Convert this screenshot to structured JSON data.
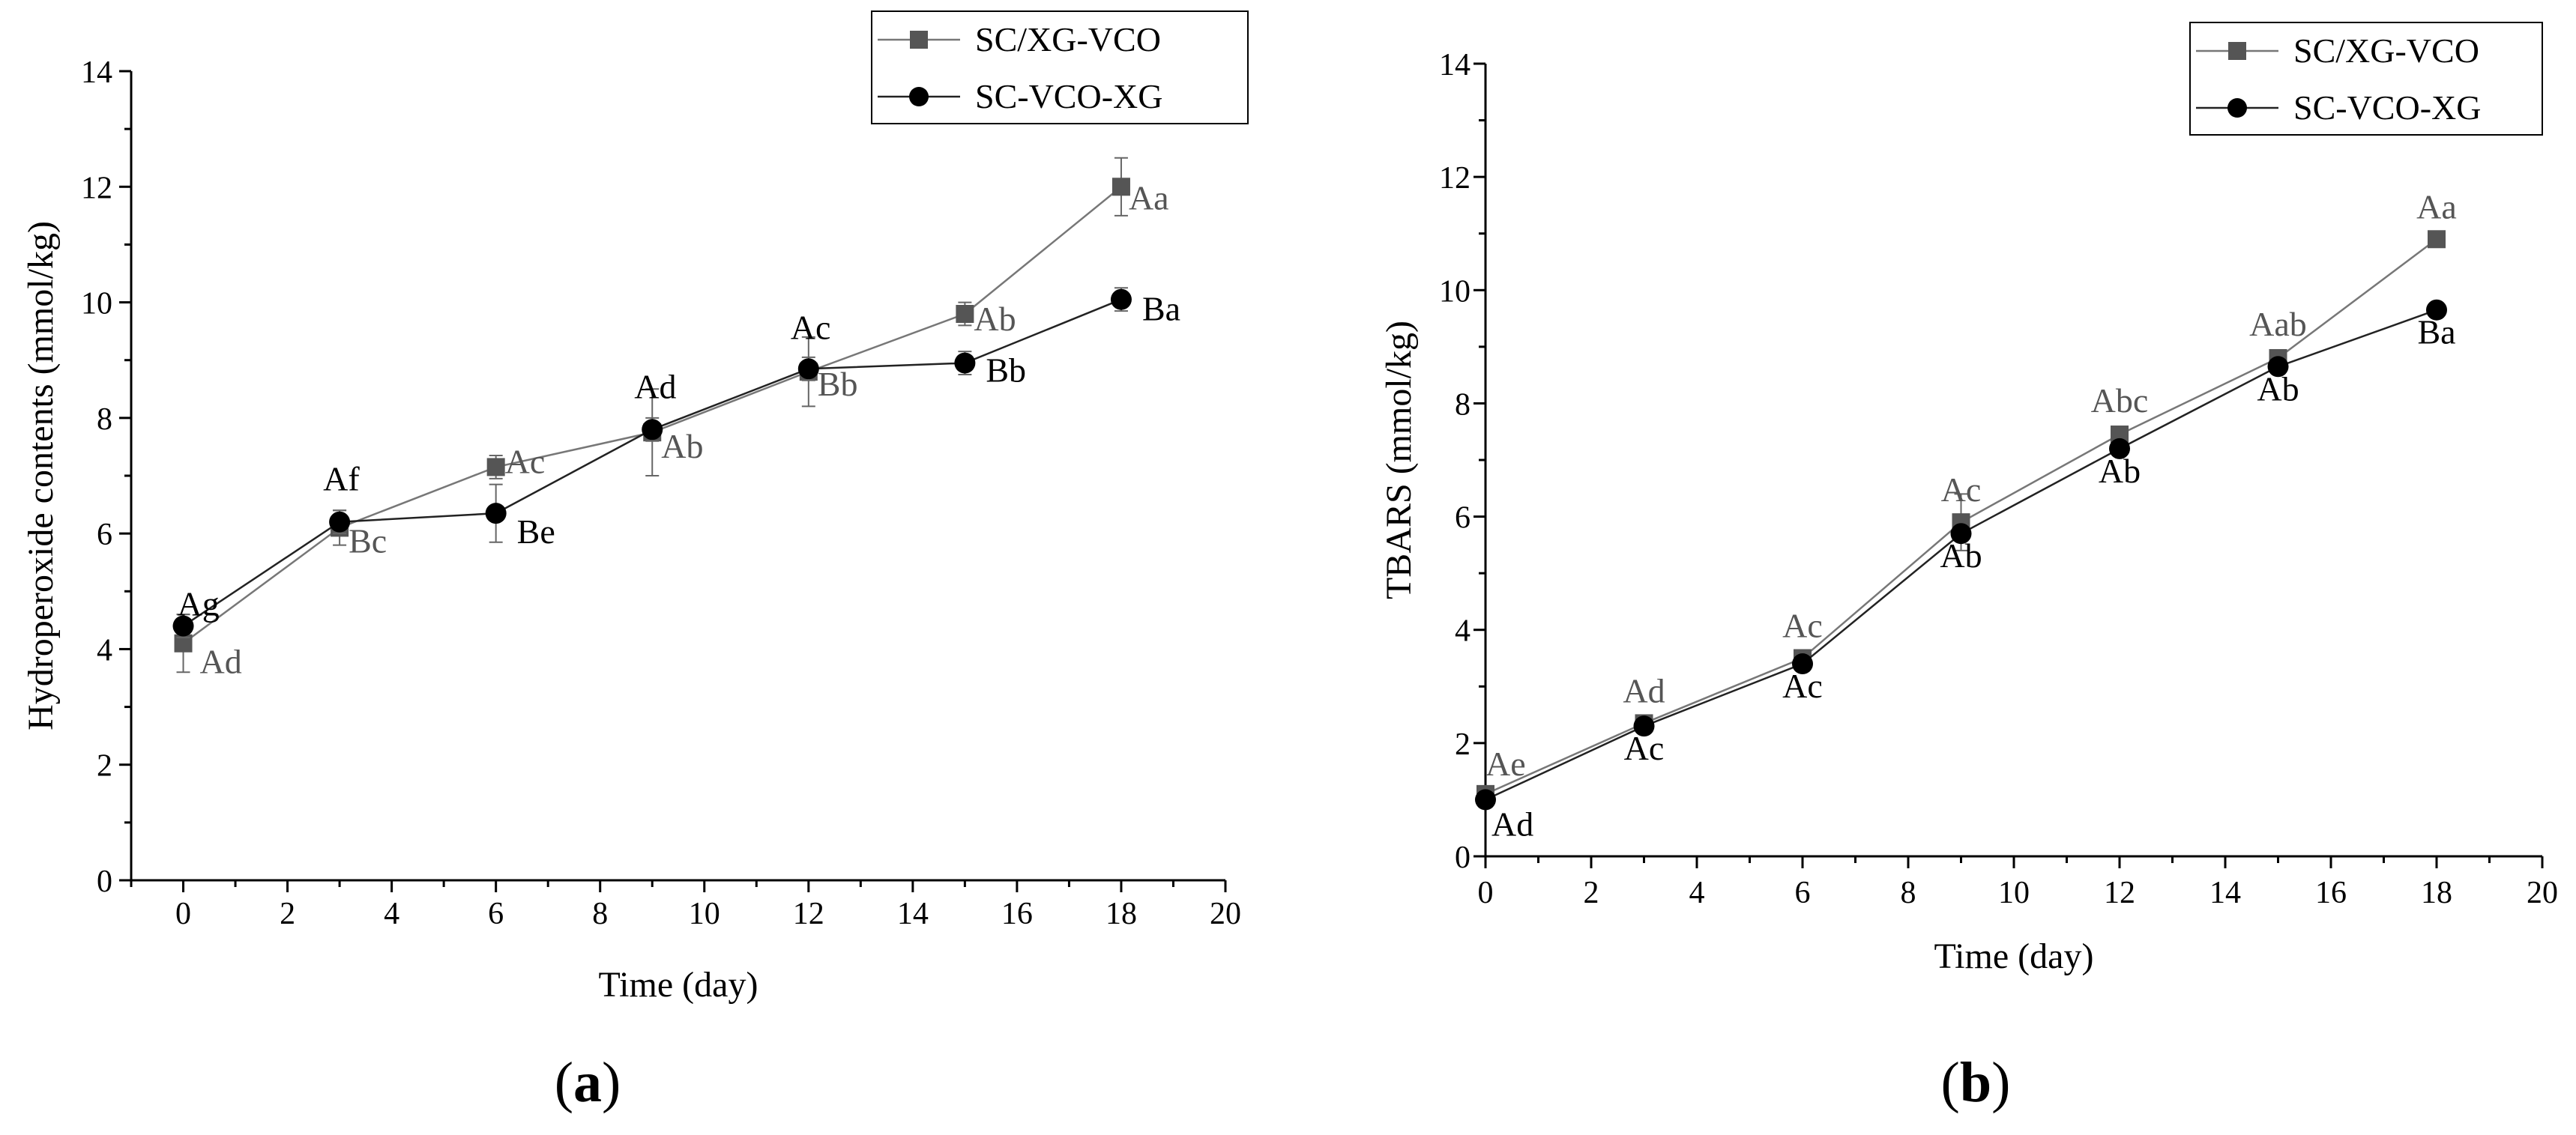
{
  "chart_data": [
    {
      "type": "line",
      "panel": "a",
      "panel_label": "a",
      "title": "",
      "xlabel": "Time (day)",
      "ylabel": "Hydroperoxide contents (mmol/kg)",
      "xlim": [
        -1,
        20
      ],
      "ylim": [
        0,
        14
      ],
      "xticks": [
        0,
        2,
        4,
        6,
        8,
        10,
        12,
        14,
        16,
        18,
        20
      ],
      "yticks": [
        0,
        2,
        4,
        6,
        8,
        10,
        12,
        14
      ],
      "grid": false,
      "legend_position": "top-right",
      "x": [
        0,
        3,
        6,
        9,
        12,
        15,
        18
      ],
      "series": [
        {
          "name": "SC/XG-VCO",
          "marker": "square",
          "color": "#555555",
          "values": [
            4.1,
            6.1,
            7.15,
            7.75,
            8.8,
            9.8,
            12.0
          ],
          "errors": [
            0.5,
            0.3,
            0.2,
            0.75,
            0.6,
            0.2,
            0.5
          ],
          "labels": [
            "Ad",
            "Bc",
            "Ac",
            "Ab",
            "Bb",
            "Ab",
            "Aa"
          ]
        },
        {
          "name": "SC-VCO-XG",
          "marker": "circle",
          "color": "#000000",
          "values": [
            4.4,
            6.2,
            6.35,
            7.8,
            8.85,
            8.95,
            10.05
          ],
          "errors": [
            0.2,
            0.2,
            0.5,
            0.2,
            0.2,
            0.2,
            0.2
          ],
          "labels": [
            "Ag",
            "Af",
            "Be",
            "Ad",
            "Ac",
            "Bb",
            "Ba"
          ]
        }
      ]
    },
    {
      "type": "line",
      "panel": "b",
      "panel_label": "b",
      "title": "",
      "xlabel": "Time (day)",
      "ylabel": "TBARS (mmol/kg)",
      "xlim": [
        0,
        20
      ],
      "ylim": [
        0,
        14
      ],
      "xticks": [
        0,
        2,
        4,
        6,
        8,
        10,
        12,
        14,
        16,
        18,
        20
      ],
      "yticks": [
        0,
        2,
        4,
        6,
        8,
        10,
        12,
        14
      ],
      "grid": false,
      "legend_position": "top-right",
      "x": [
        0,
        3,
        6,
        9,
        12,
        15,
        18
      ],
      "series": [
        {
          "name": "SC/XG-VCO",
          "marker": "square",
          "color": "#555555",
          "values": [
            1.1,
            2.35,
            3.5,
            5.9,
            7.45,
            8.8,
            10.9
          ],
          "errors": [
            0.1,
            0.1,
            0.1,
            0.5,
            0.1,
            0.1,
            0.05
          ],
          "labels": [
            "Ae",
            "Ad",
            "Ac",
            "Ac",
            "Abc",
            "Aab",
            "Aa"
          ]
        },
        {
          "name": "SC-VCO-XG",
          "marker": "circle",
          "color": "#000000",
          "values": [
            1.0,
            2.3,
            3.4,
            5.7,
            7.2,
            8.65,
            9.65
          ],
          "errors": [
            0.05,
            0.05,
            0.05,
            0.05,
            0.1,
            0.05,
            0.05
          ],
          "labels": [
            "Ad",
            "Ac",
            "Ac",
            "Ab",
            "Ab",
            "Ab",
            "Ba"
          ]
        }
      ]
    }
  ]
}
